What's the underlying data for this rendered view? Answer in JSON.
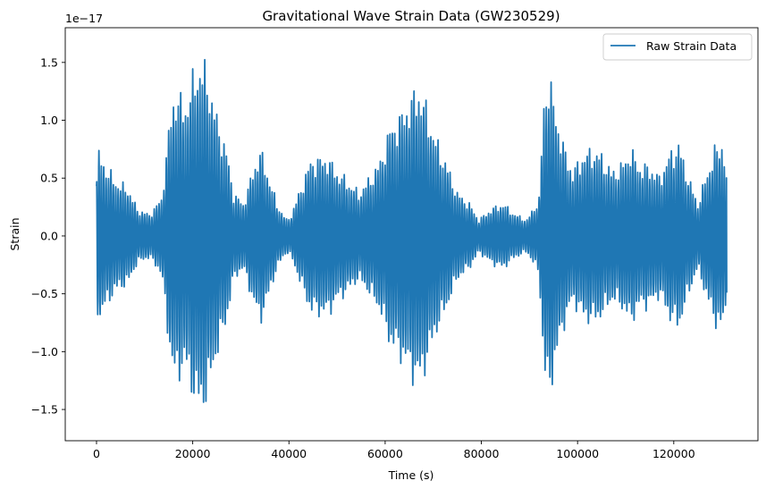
{
  "chart_data": {
    "type": "line",
    "title": "Gravitational Wave Strain Data (GW230529)",
    "xlabel": "Time (s)",
    "ylabel": "Strain",
    "offset_text": "1e−17",
    "xlim": [
      -6500,
      137500
    ],
    "ylim": [
      -17.7,
      18.0
    ],
    "x_ticks": [
      0,
      20000,
      40000,
      60000,
      80000,
      100000,
      120000
    ],
    "x_tick_labels": [
      "0",
      "20000",
      "40000",
      "60000",
      "80000",
      "100000",
      "120000"
    ],
    "y_ticks": [
      -15,
      -10,
      -5,
      0,
      5,
      10,
      15
    ],
    "y_tick_labels": [
      "−1.5",
      "−1.0",
      "−0.5",
      "0.0",
      "0.5",
      "1.0",
      "1.5"
    ],
    "grid": false,
    "legend": {
      "position": "top-right"
    },
    "color": "#1f77b4",
    "series": [
      {
        "name": "Raw Strain Data",
        "envelope": {
          "x": [
            0,
            600,
            2500,
            4800,
            6500,
            8500,
            11000,
            13500,
            15200,
            16300,
            18300,
            20500,
            21500,
            23000,
            25000,
            27000,
            28500,
            30500,
            32500,
            34000,
            35500,
            37500,
            39500,
            40500,
            42500,
            44500,
            46500,
            48000,
            50000,
            52500,
            54500,
            57000,
            59000,
            61000,
            63000,
            65000,
            67000,
            68500,
            70500,
            72500,
            75000,
            77500,
            79500,
            82000,
            84500,
            87000,
            89500,
            92000,
            93000,
            94000,
            95500,
            97000,
            99000,
            101000,
            103000,
            105000,
            107000,
            109000,
            111000,
            113000,
            115000,
            117000,
            119000,
            121000,
            123000,
            125000,
            127000,
            128500,
            130000,
            131000
          ],
          "amplitude": [
            6.5,
            7.8,
            6.0,
            4.8,
            4.5,
            2.5,
            2.0,
            3.5,
            10.5,
            13.6,
            12.0,
            15.2,
            16.2,
            15.0,
            11.0,
            8.0,
            4.0,
            3.0,
            6.0,
            8.0,
            6.0,
            3.0,
            1.5,
            2.0,
            4.5,
            7.0,
            7.2,
            7.3,
            6.0,
            5.0,
            4.0,
            5.5,
            7.0,
            10.0,
            11.0,
            12.5,
            13.7,
            12.0,
            9.0,
            7.0,
            4.0,
            3.0,
            1.5,
            2.5,
            3.0,
            2.0,
            1.5,
            3.5,
            12.5,
            14.9,
            11.5,
            8.5,
            6.0,
            7.5,
            8.0,
            7.5,
            6.0,
            6.5,
            8.0,
            6.5,
            6.5,
            5.5,
            7.5,
            8.6,
            5.5,
            3.0,
            6.0,
            8.0,
            8.8,
            6.5
          ],
          "cycle_period": 500
        },
        "start_value": 4.3,
        "end_value": -4.9
      }
    ]
  }
}
